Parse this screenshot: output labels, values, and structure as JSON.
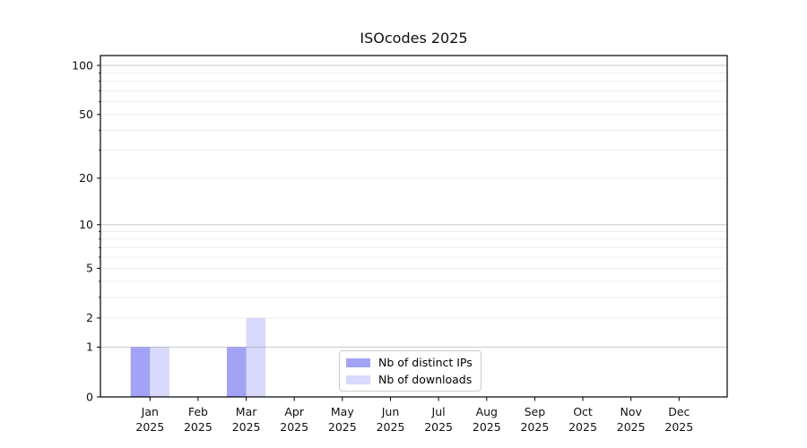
{
  "title": "ISOcodes 2025",
  "chart_data": {
    "type": "bar",
    "title": "ISOcodes 2025",
    "year": "2025",
    "categories": [
      "Jan",
      "Feb",
      "Mar",
      "Apr",
      "May",
      "Jun",
      "Jul",
      "Aug",
      "Sep",
      "Oct",
      "Nov",
      "Dec"
    ],
    "series": [
      {
        "name": "Nb of distinct IPs",
        "fill": "rgba(110,110,240,0.63)",
        "values": [
          1,
          0,
          1,
          0,
          0,
          0,
          0,
          0,
          0,
          0,
          0,
          0
        ]
      },
      {
        "name": "Nb of downloads",
        "fill": "rgba(110,110,240,0.26)",
        "values": [
          1,
          0,
          2,
          0,
          0,
          0,
          0,
          0,
          0,
          0,
          0,
          0
        ]
      }
    ],
    "y_axis": {
      "scale": "log1p",
      "ticks": [
        0,
        1,
        2,
        5,
        10,
        20,
        50,
        100
      ],
      "minor_ticks": [
        3,
        4,
        6,
        7,
        8,
        9,
        30,
        40,
        60,
        70,
        80,
        90
      ],
      "major_grid_values": [
        1,
        10,
        100
      ],
      "ylim": [
        0,
        115
      ]
    },
    "grid": {
      "orientation": "horizontal",
      "major_color": "#c8c8c8",
      "minor_color": "#ececec"
    },
    "spine_color": "#000000",
    "text_color": "#111111",
    "legend": {
      "position": "lower center"
    }
  }
}
